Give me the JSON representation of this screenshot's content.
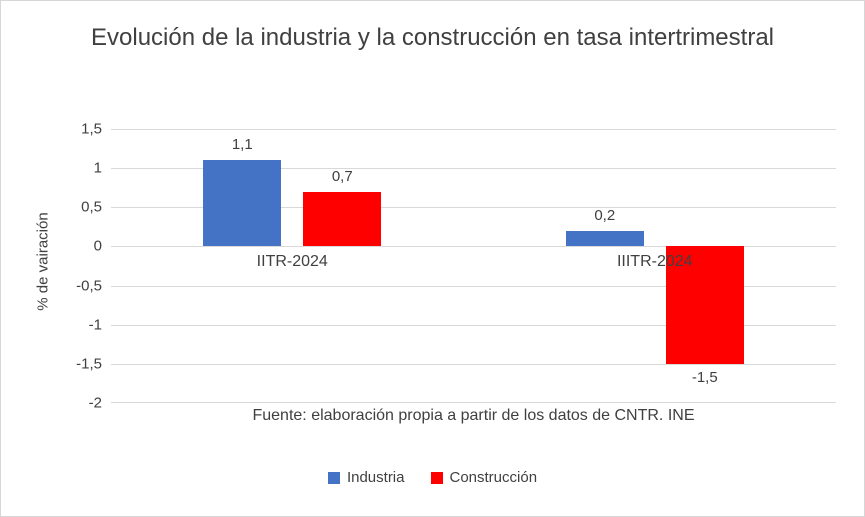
{
  "title": "Evolución de la industria y la construcción en tasa intertrimestral",
  "chart_data": {
    "type": "bar",
    "categories": [
      "IITR-2024",
      "IIITR-2024"
    ],
    "series": [
      {
        "name": "Industria",
        "color": "#4472c4",
        "values": [
          1.1,
          0.2
        ],
        "value_labels": [
          "1,1",
          "0,2"
        ]
      },
      {
        "name": "Construcción",
        "color": "#ff0000",
        "values": [
          0.7,
          -1.5
        ],
        "value_labels": [
          "0,7",
          "-1,5"
        ]
      }
    ],
    "title": "Evolución de la industria y la construcción en tasa intertrimestral",
    "ylabel": "% de vairación",
    "xlabel": "Fuente: elaboración propia a partir de los datos de CNTR. INE",
    "ylim": [
      -2,
      1.5
    ],
    "yticks": [
      {
        "value": 1.5,
        "label": "1,5"
      },
      {
        "value": 1,
        "label": "1"
      },
      {
        "value": 0.5,
        "label": "0,5"
      },
      {
        "value": 0,
        "label": "0"
      },
      {
        "value": -0.5,
        "label": "-0,5"
      },
      {
        "value": -1,
        "label": "-1"
      },
      {
        "value": -1.5,
        "label": "-1,5"
      },
      {
        "value": -2,
        "label": "-2"
      }
    ],
    "grid": true,
    "legend_position": "bottom"
  }
}
